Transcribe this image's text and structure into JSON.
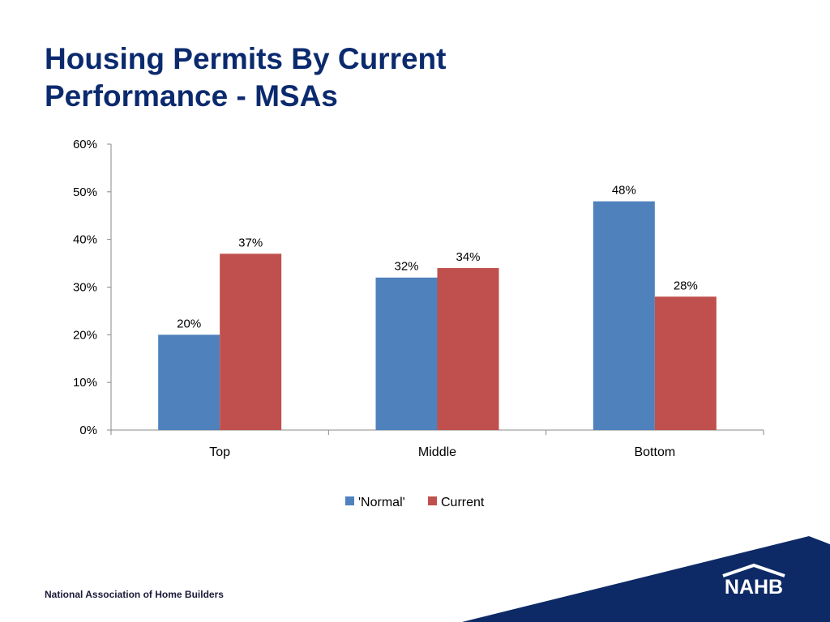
{
  "slide": {
    "title_line1": "Housing Permits By Current",
    "title_line2": "Performance - MSAs",
    "footer": "National Association of Home Builders",
    "logo_text": "NAHB"
  },
  "colors": {
    "title": "#0b2a6e",
    "normal": "#4f81bd",
    "current": "#c0504d",
    "footer_band": "#0d2a66"
  },
  "chart_data": {
    "type": "bar",
    "categories": [
      "Top",
      "Middle",
      "Bottom"
    ],
    "series": [
      {
        "name": "'Normal'",
        "values": [
          20,
          32,
          48
        ],
        "labels": [
          "20%",
          "32%",
          "48%"
        ],
        "color": "#4f81bd"
      },
      {
        "name": "Current",
        "values": [
          37,
          34,
          28
        ],
        "labels": [
          "37%",
          "34%",
          "28%"
        ],
        "color": "#c0504d"
      }
    ],
    "value_precision_note": "",
    "ylim": [
      0,
      60
    ],
    "yticks": [
      0,
      10,
      20,
      30,
      40,
      50,
      60
    ],
    "ytick_labels": [
      "0%",
      "10%",
      "20%",
      "30%",
      "40%",
      "50%",
      "60%"
    ],
    "xlabel": "",
    "ylabel": "",
    "grid": false,
    "legend_position": "bottom"
  }
}
